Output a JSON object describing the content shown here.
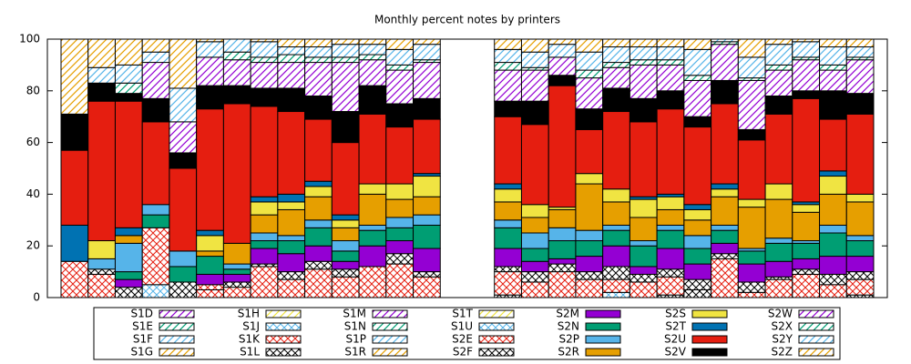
{
  "chart_data": {
    "type": "bar",
    "stacked": true,
    "title": "Monthly percent notes by printers",
    "categories": [
      null,
      null,
      null,
      null,
      null,
      null,
      null,
      null,
      null,
      null,
      null,
      null,
      null,
      null,
      null,
      null,
      null,
      null,
      null,
      null,
      null,
      null,
      null,
      null,
      null,
      null,
      null,
      null,
      null,
      null
    ],
    "ylim": [
      0,
      100
    ],
    "yticks": [
      0,
      20,
      40,
      60,
      80,
      100
    ],
    "grid": false,
    "legend": "bottom",
    "series": [
      {
        "name": "S1D",
        "color": "#9400d3",
        "pattern": "hatch",
        "values": [
          0,
          0,
          0,
          0,
          0,
          0,
          0,
          0,
          0,
          0,
          0,
          0,
          0,
          0,
          null,
          null,
          0,
          0,
          0,
          0,
          0,
          0,
          0,
          0,
          0,
          0,
          0,
          0,
          0,
          0
        ]
      },
      {
        "name": "S1E",
        "color": "#009e73",
        "pattern": "hatch",
        "values": [
          0,
          0,
          0,
          0,
          0,
          0,
          0,
          0,
          0,
          0,
          0,
          0,
          0,
          0,
          null,
          null,
          0,
          0,
          0,
          0,
          0,
          0,
          0,
          0,
          0,
          0,
          0,
          0,
          0,
          0
        ]
      },
      {
        "name": "S1F",
        "color": "#56b4e9",
        "pattern": "hatch",
        "values": [
          0,
          0,
          0,
          0,
          0,
          0,
          0,
          0,
          0,
          0,
          0,
          0,
          0,
          0,
          null,
          null,
          0,
          0,
          0,
          0,
          0,
          0,
          0,
          0,
          0,
          0,
          0,
          0,
          0,
          0
        ]
      },
      {
        "name": "S1G",
        "color": "#e69f00",
        "pattern": "hatch",
        "values": [
          0,
          0,
          0,
          0,
          0,
          0,
          0,
          0,
          0,
          0,
          0,
          0,
          0,
          0,
          null,
          null,
          0,
          0,
          0,
          0,
          0,
          0,
          0,
          0,
          0,
          0,
          0,
          0,
          0,
          0
        ]
      },
      {
        "name": "S1H",
        "color": "#f0e442",
        "pattern": "hatch",
        "values": [
          0,
          0,
          0,
          0,
          0,
          0,
          0,
          0,
          0,
          0,
          0,
          0,
          0,
          0,
          null,
          null,
          0,
          0,
          0,
          0,
          0,
          0,
          0,
          0,
          0,
          0,
          0,
          0,
          0,
          0
        ]
      },
      {
        "name": "S1J",
        "color": "#56b4e9",
        "pattern": "check",
        "values": [
          0,
          0,
          0,
          5,
          0,
          0,
          0,
          0,
          0,
          0,
          0,
          0,
          0,
          0,
          null,
          null,
          0,
          0,
          0,
          0,
          2,
          0,
          0,
          0,
          0,
          0,
          0,
          0,
          0,
          0
        ]
      },
      {
        "name": "S1K",
        "color": "#e51e10",
        "pattern": "check",
        "values": [
          0,
          0,
          0,
          0,
          0,
          3,
          4,
          12,
          0,
          0,
          0,
          0,
          0,
          0,
          null,
          null,
          0,
          0,
          0,
          0,
          0,
          0,
          0,
          0,
          0,
          0,
          0,
          0,
          0,
          0
        ]
      },
      {
        "name": "S1L",
        "color": "#000000",
        "pattern": "check",
        "values": [
          0,
          0,
          0,
          0,
          0,
          0,
          0,
          0,
          0,
          0,
          0,
          0,
          0,
          0,
          null,
          null,
          1,
          0,
          0,
          0,
          0,
          0,
          1,
          3,
          0,
          0,
          0,
          0,
          0,
          1
        ]
      },
      {
        "name": "S1M",
        "color": "#9400d3",
        "pattern": "hatch",
        "values": [
          0,
          0,
          0,
          0,
          0,
          0,
          0,
          0,
          0,
          0,
          0,
          0,
          0,
          0,
          null,
          null,
          0,
          0,
          0,
          0,
          0,
          0,
          0,
          0,
          0,
          0,
          0,
          0,
          0,
          0
        ]
      },
      {
        "name": "S1N",
        "color": "#009e73",
        "pattern": "hatch",
        "values": [
          0,
          0,
          0,
          0,
          0,
          0,
          0,
          0,
          0,
          0,
          0,
          0,
          0,
          0,
          null,
          null,
          0,
          0,
          0,
          0,
          0,
          0,
          0,
          0,
          0,
          0,
          0,
          0,
          0,
          0
        ]
      },
      {
        "name": "S1P",
        "color": "#56b4e9",
        "pattern": "hatch",
        "values": [
          0,
          0,
          0,
          0,
          0,
          0,
          0,
          0,
          0,
          0,
          0,
          0,
          0,
          0,
          null,
          null,
          0,
          0,
          0,
          0,
          0,
          0,
          0,
          0,
          0,
          0,
          0,
          0,
          0,
          0
        ]
      },
      {
        "name": "S1R",
        "color": "#e69f00",
        "pattern": "hatch",
        "values": [
          0,
          0,
          0,
          0,
          0,
          0,
          0,
          0,
          0,
          0,
          0,
          0,
          0,
          0,
          null,
          null,
          0,
          0,
          0,
          0,
          0,
          0,
          0,
          0,
          0,
          0,
          0,
          0,
          0,
          0
        ]
      },
      {
        "name": "S1T",
        "color": "#f0e442",
        "pattern": "hatch",
        "values": [
          0,
          0,
          0,
          0,
          0,
          0,
          0,
          0,
          0,
          0,
          0,
          0,
          0,
          0,
          null,
          null,
          0,
          0,
          0,
          0,
          0,
          0,
          0,
          0,
          0,
          0,
          0,
          0,
          0,
          0
        ]
      },
      {
        "name": "S1U",
        "color": "#56b4e9",
        "pattern": "check",
        "values": [
          0,
          0,
          0,
          0,
          0,
          0,
          0,
          0,
          0,
          0,
          0,
          0,
          0,
          0,
          null,
          null,
          0,
          0,
          0,
          0,
          0,
          0,
          0,
          0,
          0,
          0,
          0,
          0,
          0,
          0
        ]
      },
      {
        "name": "S2E",
        "color": "#e51e10",
        "pattern": "check",
        "values": [
          14,
          9,
          0,
          22,
          0,
          2,
          0,
          0,
          7,
          11,
          8,
          12,
          13,
          8,
          null,
          null,
          9,
          6,
          10,
          7,
          5,
          6,
          7,
          0,
          15,
          2,
          7,
          9,
          5,
          6
        ]
      },
      {
        "name": "S2F",
        "color": "#000000",
        "pattern": "check",
        "values": [
          0,
          2,
          4,
          0,
          6,
          0,
          2,
          1,
          3,
          3,
          3,
          0,
          4,
          2,
          null,
          null,
          2,
          4,
          3,
          3,
          5,
          3,
          3,
          4,
          2,
          4,
          1,
          2,
          4,
          3
        ]
      },
      {
        "name": "S2M",
        "color": "#9400d3",
        "pattern": "solid",
        "values": [
          0,
          0,
          3,
          0,
          0,
          4,
          3,
          6,
          7,
          6,
          3,
          8,
          5,
          9,
          null,
          null,
          7,
          4,
          2,
          6,
          8,
          3,
          8,
          6,
          4,
          7,
          6,
          4,
          7,
          6
        ]
      },
      {
        "name": "S2N",
        "color": "#009e73",
        "pattern": "solid",
        "values": [
          0,
          0,
          3,
          5,
          6,
          7,
          2,
          3,
          5,
          7,
          4,
          6,
          5,
          9,
          null,
          null,
          8,
          5,
          7,
          6,
          6,
          8,
          7,
          6,
          5,
          5,
          7,
          6,
          9,
          6
        ]
      },
      {
        "name": "S2P",
        "color": "#56b4e9",
        "pattern": "solid",
        "values": [
          0,
          4,
          11,
          4,
          6,
          0,
          2,
          3,
          2,
          3,
          4,
          2,
          4,
          4,
          null,
          null,
          3,
          6,
          5,
          4,
          2,
          2,
          2,
          5,
          2,
          1,
          2,
          1,
          3,
          2
        ]
      },
      {
        "name": "S2R",
        "color": "#e69f00",
        "pattern": "solid",
        "values": [
          0,
          0,
          3,
          0,
          0,
          2,
          8,
          7,
          10,
          9,
          5,
          12,
          7,
          7,
          null,
          null,
          7,
          6,
          7,
          18,
          9,
          9,
          6,
          6,
          11,
          16,
          15,
          11,
          12,
          13
        ]
      },
      {
        "name": "S2S",
        "color": "#f0e442",
        "pattern": "solid",
        "values": [
          0,
          7,
          0,
          0,
          0,
          6,
          0,
          5,
          3,
          4,
          3,
          4,
          6,
          8,
          null,
          null,
          5,
          5,
          1,
          4,
          5,
          7,
          5,
          4,
          3,
          3,
          6,
          3,
          7,
          3
        ]
      },
      {
        "name": "S2T",
        "color": "#0072b2",
        "pattern": "solid",
        "values": [
          14,
          0,
          3,
          0,
          0,
          2,
          0,
          2,
          3,
          2,
          2,
          0,
          0,
          1,
          null,
          null,
          2,
          0,
          0,
          0,
          0,
          1,
          1,
          2,
          2,
          0,
          0,
          1,
          2,
          0
        ]
      },
      {
        "name": "S2U",
        "color": "#e51e10",
        "pattern": "solid",
        "values": [
          29,
          54,
          49,
          32,
          32,
          47,
          54,
          35,
          32,
          24,
          28,
          27,
          22,
          21,
          null,
          null,
          26,
          31,
          47,
          17,
          30,
          29,
          33,
          30,
          31,
          23,
          27,
          40,
          20,
          31
        ]
      },
      {
        "name": "S2V",
        "color": "#000000",
        "pattern": "solid",
        "values": [
          14,
          7,
          3,
          9,
          6,
          9,
          7,
          7,
          9,
          9,
          12,
          11,
          9,
          8,
          null,
          null,
          6,
          9,
          4,
          8,
          9,
          9,
          7,
          4,
          9,
          4,
          7,
          3,
          11,
          8
        ]
      },
      {
        "name": "S2W",
        "color": "#9400d3",
        "pattern": "hatch",
        "values": [
          0,
          0,
          0,
          14,
          12,
          11,
          10,
          10,
          10,
          13,
          19,
          10,
          13,
          14,
          null,
          null,
          12,
          12,
          7,
          12,
          8,
          13,
          10,
          14,
          14,
          19,
          10,
          12,
          8,
          13
        ]
      },
      {
        "name": "S2X",
        "color": "#009e73",
        "pattern": "hatch",
        "values": [
          0,
          0,
          4,
          0,
          0,
          0,
          3,
          2,
          3,
          2,
          2,
          2,
          2,
          1,
          null,
          null,
          3,
          1,
          0,
          3,
          2,
          2,
          2,
          2,
          1,
          1,
          2,
          1,
          2,
          1
        ]
      },
      {
        "name": "S2Y",
        "color": "#56b4e9",
        "pattern": "hatch",
        "values": [
          0,
          6,
          7,
          4,
          13,
          6,
          5,
          6,
          3,
          4,
          5,
          4,
          6,
          6,
          null,
          null,
          5,
          6,
          5,
          7,
          6,
          5,
          5,
          10,
          1,
          8,
          8,
          6,
          7,
          4
        ]
      },
      {
        "name": "S2Z",
        "color": "#e69f00",
        "pattern": "hatch",
        "values": [
          29,
          11,
          10,
          5,
          19,
          1,
          0,
          1,
          3,
          3,
          2,
          2,
          4,
          2,
          null,
          null,
          4,
          5,
          2,
          5,
          3,
          3,
          3,
          4,
          0,
          7,
          2,
          1,
          3,
          3
        ]
      }
    ]
  }
}
